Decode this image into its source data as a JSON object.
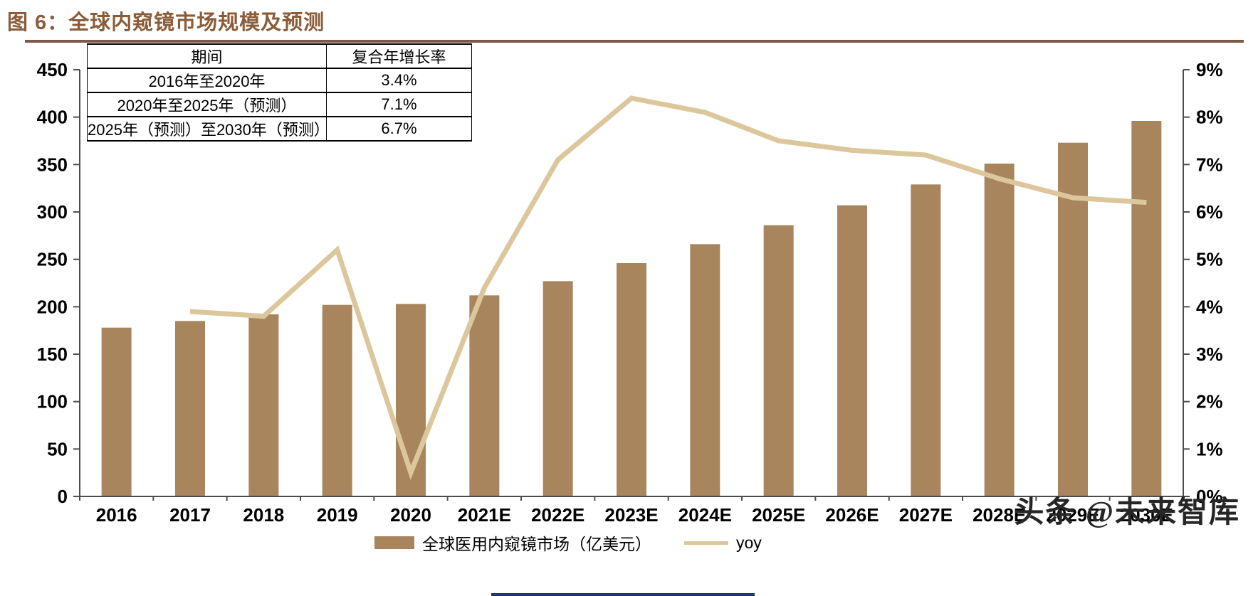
{
  "title": "图 6：全球内窥镜市场规模及预测",
  "watermark": "头条 @未来智库",
  "legend": {
    "bars": "全球医用内窥镜市场（亿美元）",
    "line": "yoy"
  },
  "cagr_table": {
    "headers": [
      "期间",
      "复合年增长率"
    ],
    "rows": [
      {
        "period": "2016年至2020年",
        "cagr": "3.4%"
      },
      {
        "period": "2020年至2025年（预测）",
        "cagr": "7.1%"
      },
      {
        "period": "2025年（预测）至2030年（预测）",
        "cagr": "6.7%"
      }
    ]
  },
  "colors": {
    "bar": "#a8855c",
    "line": "#dcc79c",
    "title": "#8a5c3a",
    "rule": "#7d5846",
    "axis": "#4d4d4d",
    "text": "#000000",
    "watermark": "#262626",
    "bottom_line": "#1f3864"
  },
  "chart_data": {
    "type": "bar",
    "subtype": "bar+line combo, line on secondary axis",
    "title": "全球内窥镜市场规模及预测",
    "categories": [
      "2016",
      "2017",
      "2018",
      "2019",
      "2020",
      "2021E",
      "2022E",
      "2023E",
      "2024E",
      "2025E",
      "2026E",
      "2027E",
      "2028E",
      "2029E",
      "2030E"
    ],
    "series": [
      {
        "name": "全球医用内窥镜市场（亿美元）",
        "type": "bar",
        "axis": "left",
        "values": [
          178,
          185,
          192,
          202,
          203,
          212,
          227,
          246,
          266,
          286,
          307,
          329,
          351,
          373,
          396
        ]
      },
      {
        "name": "yoy",
        "type": "line",
        "axis": "right",
        "values": [
          null,
          3.9,
          3.8,
          5.2,
          0.5,
          4.4,
          7.1,
          8.4,
          8.1,
          7.5,
          7.3,
          7.2,
          6.7,
          6.3,
          6.2
        ]
      }
    ],
    "left_axis": {
      "min": 0,
      "max": 450,
      "step": 50,
      "suffix": ""
    },
    "right_axis": {
      "min": 0,
      "max": 9,
      "step": 1,
      "suffix": "%"
    },
    "grid": false,
    "legend_position": "bottom"
  }
}
